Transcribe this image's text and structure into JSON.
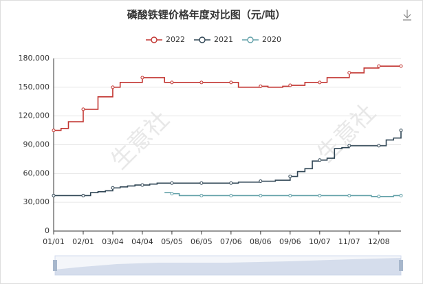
{
  "chart_data": {
    "type": "line",
    "step": true,
    "title": "磷酸铁锂价格年度对比图（元/吨）",
    "watermark": "生意社",
    "categories": [
      "01/01",
      null,
      null,
      null,
      "02/01",
      null,
      null,
      null,
      "03/04",
      null,
      null,
      null,
      "04/04",
      null,
      null,
      null,
      "05/05",
      null,
      null,
      null,
      "06/05",
      null,
      null,
      null,
      "07/06",
      null,
      null,
      null,
      "08/06",
      null,
      null,
      null,
      "09/06",
      null,
      null,
      null,
      "10/07",
      null,
      null,
      null,
      "11/07",
      null,
      null,
      null,
      "12/08",
      null,
      null,
      null
    ],
    "series": [
      {
        "name": "2022",
        "color": "#c23531",
        "values": [
          105000,
          107000,
          114000,
          114000,
          127000,
          127000,
          140000,
          140000,
          150000,
          155000,
          155000,
          155000,
          160000,
          160000,
          160000,
          155000,
          155000,
          155000,
          155000,
          155000,
          155000,
          155000,
          155000,
          155000,
          155000,
          150000,
          150000,
          150000,
          151000,
          150000,
          150000,
          151000,
          152000,
          152000,
          155000,
          155000,
          155000,
          160000,
          160000,
          160000,
          165000,
          165000,
          170000,
          170000,
          172000,
          172000,
          172000,
          172000
        ]
      },
      {
        "name": "2021",
        "color": "#2f4554",
        "values": [
          37000,
          37000,
          37000,
          37000,
          37000,
          40000,
          41000,
          42000,
          45000,
          46000,
          47000,
          48000,
          48000,
          49000,
          50000,
          50000,
          50000,
          50000,
          50000,
          50000,
          50000,
          50000,
          50000,
          50000,
          50000,
          51000,
          51000,
          51000,
          52000,
          52000,
          53000,
          53000,
          57000,
          62000,
          65000,
          73000,
          74000,
          76000,
          86000,
          87000,
          89000,
          89000,
          89000,
          89000,
          89000,
          95000,
          97000,
          105000
        ]
      },
      {
        "name": "2020",
        "color": "#61a0a8",
        "values": [
          null,
          null,
          null,
          null,
          null,
          null,
          null,
          null,
          null,
          null,
          null,
          null,
          null,
          null,
          null,
          40000,
          39000,
          37000,
          37000,
          37000,
          37000,
          37000,
          37000,
          37000,
          37000,
          37000,
          37000,
          37000,
          37000,
          37000,
          37000,
          37000,
          37000,
          37000,
          37000,
          37000,
          37000,
          37000,
          37000,
          37000,
          37000,
          37000,
          37000,
          36000,
          36000,
          36000,
          37000,
          37000
        ]
      }
    ],
    "ylim": [
      0,
      180000
    ],
    "yticks": [
      0,
      {
        "value": 30000,
        "label": "30,000"
      },
      {
        "value": 60000,
        "label": "60,000"
      },
      {
        "value": 90000,
        "label": "90,000"
      },
      {
        "value": 120000,
        "label": "120,000"
      },
      {
        "value": 150000,
        "label": "150,000"
      },
      {
        "value": 180000,
        "label": "180,000"
      }
    ],
    "grid": true
  }
}
